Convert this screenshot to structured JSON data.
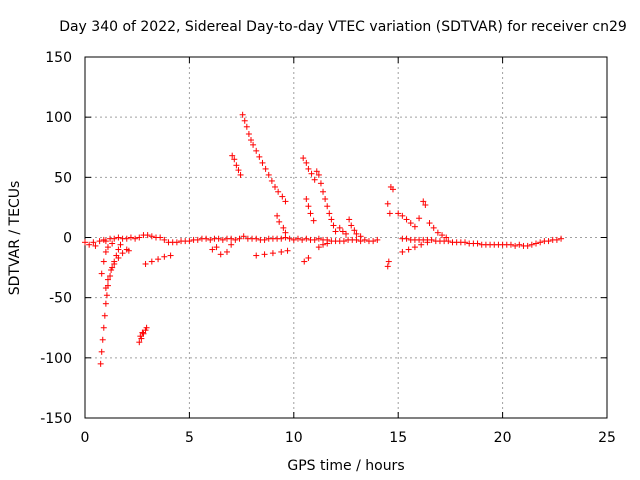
{
  "chart_data": {
    "type": "scatter",
    "title": "Day 340 of 2022, Sidereal Day-to-day VTEC variation (SDTVAR) for receiver cn29",
    "xlabel": "GPS time / hours",
    "ylabel": "SDTVAR / TECUs",
    "xlim": [
      0,
      25
    ],
    "ylim": [
      -150,
      150
    ],
    "xticks": [
      0,
      5,
      10,
      15,
      20,
      25
    ],
    "yticks": [
      -150,
      -100,
      -50,
      0,
      50,
      100,
      150
    ],
    "xtick_labels": [
      "0",
      "5",
      "10",
      "15",
      "20",
      "25"
    ],
    "ytick_labels": [
      "-150",
      "-100",
      "-50",
      "0",
      "50",
      "100",
      "150"
    ],
    "grid": true,
    "marker": "+",
    "marker_color": "#ff0000",
    "series": [
      {
        "name": "main-band",
        "points": [
          [
            0.0,
            -4
          ],
          [
            0.2,
            -6
          ],
          [
            0.4,
            -4
          ],
          [
            0.5,
            -7
          ],
          [
            0.7,
            -3
          ],
          [
            0.9,
            -2
          ],
          [
            1.0,
            -3
          ],
          [
            1.2,
            -1
          ],
          [
            1.4,
            -1
          ],
          [
            1.6,
            0
          ],
          [
            1.8,
            -1
          ],
          [
            2.0,
            -1
          ],
          [
            2.2,
            0
          ],
          [
            2.4,
            -1
          ],
          [
            2.6,
            0
          ],
          [
            2.8,
            2
          ],
          [
            3.0,
            2
          ],
          [
            3.2,
            1
          ],
          [
            3.4,
            0
          ],
          [
            3.6,
            0
          ],
          [
            3.8,
            -2
          ],
          [
            4.0,
            -4
          ],
          [
            4.2,
            -4
          ],
          [
            4.4,
            -4
          ],
          [
            4.6,
            -3
          ],
          [
            4.8,
            -3
          ],
          [
            5.0,
            -3
          ],
          [
            5.2,
            -2
          ],
          [
            5.4,
            -2
          ],
          [
            5.6,
            -1
          ],
          [
            5.8,
            -1
          ],
          [
            6.0,
            -2
          ],
          [
            6.2,
            -1
          ],
          [
            6.4,
            -1
          ],
          [
            6.6,
            -2
          ],
          [
            6.8,
            -1
          ],
          [
            7.0,
            -1
          ],
          [
            7.2,
            -2
          ],
          [
            7.4,
            -1
          ],
          [
            7.6,
            1
          ],
          [
            7.8,
            -1
          ],
          [
            8.0,
            -1
          ],
          [
            8.2,
            -1
          ],
          [
            8.4,
            -2
          ],
          [
            8.6,
            -2
          ],
          [
            8.8,
            -1
          ],
          [
            9.0,
            -1
          ],
          [
            9.2,
            -1
          ],
          [
            9.4,
            -1
          ],
          [
            9.6,
            0
          ],
          [
            9.8,
            -1
          ],
          [
            10.0,
            -2
          ],
          [
            10.2,
            -1
          ],
          [
            10.4,
            -2
          ],
          [
            10.6,
            -1
          ],
          [
            10.8,
            -2
          ],
          [
            11.0,
            -2
          ],
          [
            11.2,
            -1
          ],
          [
            11.4,
            -2
          ],
          [
            11.6,
            -2
          ],
          [
            11.8,
            -3
          ],
          [
            12.0,
            -3
          ],
          [
            12.2,
            -3
          ],
          [
            12.4,
            -3
          ],
          [
            12.6,
            -2
          ],
          [
            12.8,
            -2
          ],
          [
            13.0,
            -2
          ],
          [
            13.2,
            -3
          ],
          [
            13.4,
            -2
          ],
          [
            13.6,
            -3
          ],
          [
            13.8,
            -3
          ],
          [
            14.0,
            -2
          ],
          [
            15.2,
            -1
          ],
          [
            15.4,
            -1
          ],
          [
            15.6,
            -2
          ],
          [
            15.8,
            -2
          ],
          [
            16.0,
            -2
          ],
          [
            16.2,
            -2
          ],
          [
            16.4,
            -2
          ],
          [
            16.6,
            -2
          ],
          [
            16.8,
            -3
          ],
          [
            17.0,
            -3
          ],
          [
            17.2,
            -3
          ],
          [
            17.4,
            -3
          ],
          [
            17.6,
            -4
          ],
          [
            17.8,
            -4
          ],
          [
            18.0,
            -4
          ],
          [
            18.2,
            -4
          ],
          [
            18.4,
            -5
          ],
          [
            18.6,
            -5
          ],
          [
            18.8,
            -5
          ],
          [
            19.0,
            -6
          ],
          [
            19.2,
            -6
          ],
          [
            19.4,
            -6
          ],
          [
            19.6,
            -6
          ],
          [
            19.8,
            -6
          ],
          [
            20.0,
            -6
          ],
          [
            20.2,
            -6
          ],
          [
            20.4,
            -6
          ],
          [
            20.6,
            -7
          ],
          [
            20.8,
            -6
          ],
          [
            21.0,
            -7
          ],
          [
            21.2,
            -7
          ],
          [
            21.4,
            -6
          ],
          [
            21.6,
            -5
          ],
          [
            21.8,
            -4
          ],
          [
            22.0,
            -3
          ],
          [
            22.2,
            -3
          ],
          [
            22.4,
            -2
          ],
          [
            22.6,
            -2
          ],
          [
            22.8,
            -1
          ]
        ]
      },
      {
        "name": "early-dip-track",
        "points": [
          [
            0.75,
            -105
          ],
          [
            0.8,
            -95
          ],
          [
            0.85,
            -85
          ],
          [
            0.9,
            -75
          ],
          [
            0.95,
            -65
          ],
          [
            1.0,
            -55
          ],
          [
            1.05,
            -48
          ],
          [
            1.1,
            -40
          ],
          [
            1.2,
            -32
          ],
          [
            1.3,
            -25
          ],
          [
            1.4,
            -20
          ],
          [
            1.5,
            -15
          ],
          [
            1.6,
            -10
          ],
          [
            1.7,
            -6
          ],
          [
            0.8,
            -30
          ],
          [
            0.9,
            -20
          ],
          [
            1.0,
            -12
          ],
          [
            1.1,
            -8
          ],
          [
            1.3,
            -5
          ],
          [
            1.0,
            -42
          ],
          [
            1.1,
            -35
          ],
          [
            1.25,
            -27
          ],
          [
            1.4,
            -22
          ],
          [
            1.6,
            -17
          ],
          [
            1.8,
            -13
          ],
          [
            2.0,
            -10
          ],
          [
            2.1,
            -11
          ]
        ]
      },
      {
        "name": "short-negative-track",
        "points": [
          [
            2.6,
            -87
          ],
          [
            2.7,
            -84
          ],
          [
            2.8,
            -80
          ],
          [
            2.9,
            -77
          ],
          [
            2.95,
            -75
          ],
          [
            2.65,
            -82
          ],
          [
            2.75,
            -79
          ]
        ]
      },
      {
        "name": "lower-tracks",
        "points": [
          [
            2.9,
            -22
          ],
          [
            3.2,
            -20
          ],
          [
            3.5,
            -18
          ],
          [
            3.8,
            -16
          ],
          [
            4.1,
            -15
          ],
          [
            6.1,
            -10
          ],
          [
            6.3,
            -8
          ],
          [
            6.5,
            -14
          ],
          [
            6.8,
            -12
          ],
          [
            7.0,
            -6
          ],
          [
            8.2,
            -15
          ],
          [
            8.6,
            -14
          ],
          [
            9.0,
            -13
          ],
          [
            9.4,
            -12
          ],
          [
            9.7,
            -11
          ],
          [
            10.5,
            -20
          ],
          [
            10.7,
            -17
          ],
          [
            11.2,
            -8
          ],
          [
            11.4,
            -6
          ],
          [
            11.6,
            -5
          ],
          [
            14.5,
            -24
          ],
          [
            14.55,
            -20
          ],
          [
            15.2,
            -12
          ],
          [
            15.5,
            -10
          ],
          [
            15.8,
            -8
          ],
          [
            16.1,
            -6
          ],
          [
            16.4,
            -4
          ]
        ]
      },
      {
        "name": "positive-arc-1",
        "points": [
          [
            7.05,
            68
          ],
          [
            7.15,
            65
          ],
          [
            7.25,
            60
          ],
          [
            7.35,
            56
          ],
          [
            7.45,
            52
          ]
        ]
      },
      {
        "name": "positive-arc-2",
        "points": [
          [
            7.55,
            102
          ],
          [
            7.65,
            97
          ],
          [
            7.75,
            92
          ],
          [
            7.85,
            86
          ],
          [
            7.95,
            81
          ],
          [
            8.05,
            77
          ],
          [
            8.2,
            72
          ],
          [
            8.35,
            67
          ],
          [
            8.5,
            62
          ],
          [
            8.65,
            57
          ],
          [
            8.8,
            52
          ],
          [
            8.95,
            47
          ],
          [
            9.1,
            42
          ],
          [
            9.25,
            38
          ],
          [
            9.45,
            34
          ],
          [
            9.6,
            30
          ]
        ]
      },
      {
        "name": "positive-arc-3",
        "points": [
          [
            9.2,
            18
          ],
          [
            9.3,
            13
          ],
          [
            9.5,
            8
          ],
          [
            9.6,
            4
          ]
        ]
      },
      {
        "name": "positive-arc-4",
        "points": [
          [
            10.45,
            66
          ],
          [
            10.6,
            62
          ],
          [
            10.7,
            57
          ],
          [
            10.85,
            53
          ],
          [
            11.0,
            48
          ],
          [
            11.1,
            55
          ],
          [
            11.2,
            52
          ],
          [
            11.3,
            45
          ],
          [
            11.4,
            38
          ],
          [
            11.5,
            32
          ],
          [
            11.6,
            26
          ],
          [
            11.7,
            20
          ],
          [
            11.8,
            15
          ],
          [
            11.9,
            10
          ],
          [
            12.0,
            5
          ],
          [
            10.6,
            32
          ],
          [
            10.7,
            26
          ],
          [
            10.8,
            20
          ],
          [
            10.95,
            14
          ]
        ]
      },
      {
        "name": "positive-arc-5",
        "points": [
          [
            12.2,
            8
          ],
          [
            12.35,
            5
          ],
          [
            12.5,
            3
          ],
          [
            12.65,
            15
          ],
          [
            12.75,
            10
          ],
          [
            12.9,
            6
          ],
          [
            13.0,
            3
          ],
          [
            13.2,
            1
          ]
        ]
      },
      {
        "name": "positive-arc-6",
        "points": [
          [
            14.5,
            28
          ],
          [
            14.6,
            20
          ],
          [
            14.65,
            42
          ],
          [
            14.75,
            40
          ],
          [
            15.0,
            20
          ],
          [
            15.2,
            18
          ],
          [
            15.4,
            15
          ],
          [
            15.6,
            12
          ],
          [
            15.8,
            9
          ],
          [
            16.0,
            16
          ],
          [
            16.2,
            30
          ],
          [
            16.3,
            27
          ],
          [
            16.5,
            12
          ],
          [
            16.7,
            8
          ],
          [
            16.9,
            4
          ],
          [
            17.1,
            2
          ],
          [
            17.3,
            0
          ]
        ]
      }
    ]
  }
}
